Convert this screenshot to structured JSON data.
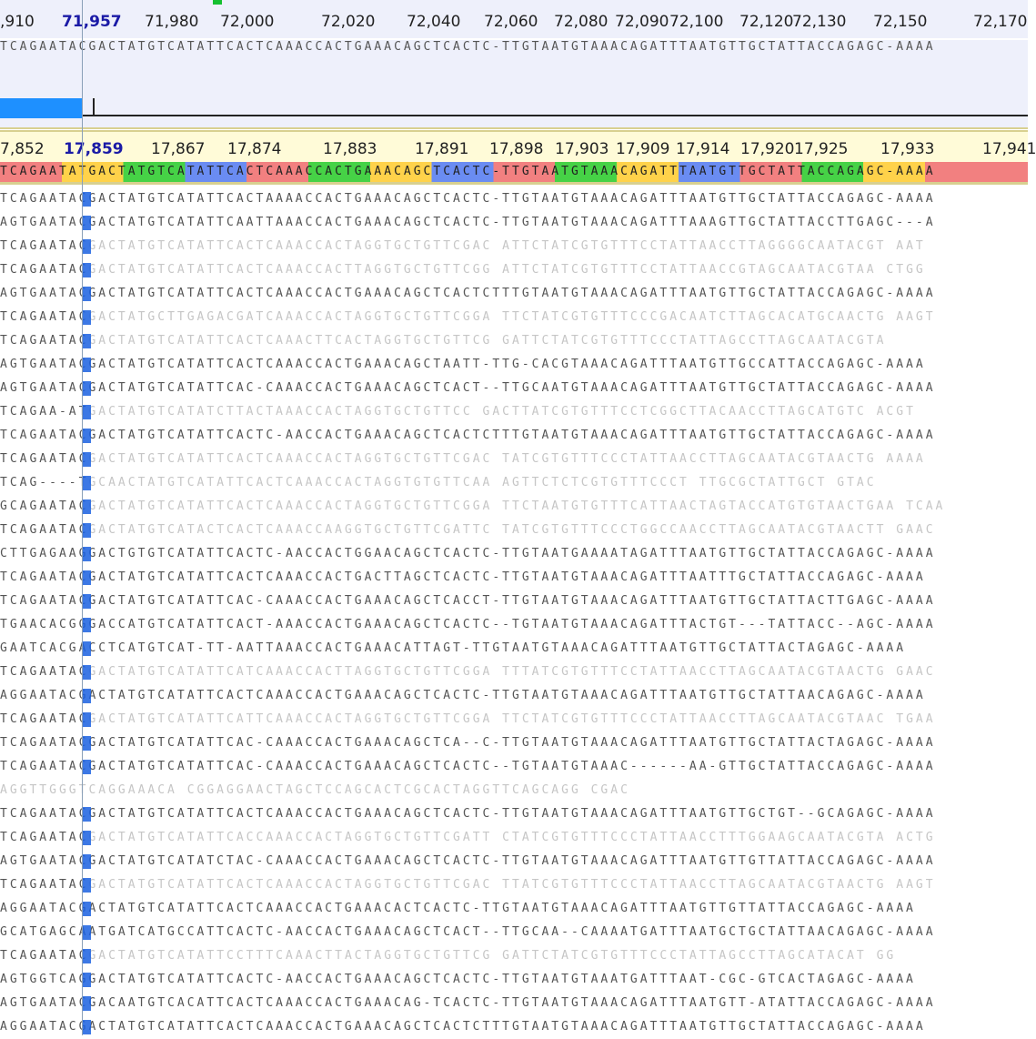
{
  "top_ruler": {
    "current": "71,957",
    "ticks": [
      ",910",
      "71,957",
      "71,980",
      "72,000",
      "72,020",
      "72,040",
      "72,060",
      "72,080",
      "72,090",
      "72,100",
      "72,120",
      "72,130",
      "72,150",
      "72,170"
    ]
  },
  "consensus_top": "TCAGAATACGACTATGTCATATTCACTCAAACCACTGAAACAGCTCACTC-TTGTAATGTAAACAGATTTAATGTTGCTATTACCAGAGC-AAAA",
  "bottom_ruler": {
    "current": "17,859",
    "ticks": [
      "7,852",
      "17,859",
      "17,867",
      "17,874",
      "17,883",
      "17,891",
      "17,898",
      "17,903",
      "17,909",
      "17,914",
      "17,920",
      "17,925",
      "17,933",
      "17,941"
    ]
  },
  "reference": "TCAGAATATGACTATGTCATATTCACTCAAACCACTGAAACAGCTCACTC-TTGTAATGTAAACAGATTTAATGTTGCTATTACCAGAGC-AAAA",
  "reads": [
    {
      "text": "TCAGAATACGACTATGTCATATTCACTAAAACCACTGAAACAGCTCACTC-TTGTAATGTAAACAGATTTAATGTTGCTATTACCAGAGC-AAAA",
      "style": "normal"
    },
    {
      "text": "AGTGAATACGACTATGTCATATTCAATTAAACCACTGAAACAGCTCACTC-TTGTAATGTAAACAGATTTAAAGTTGCTATTACCTTGAGC---A",
      "style": "normal"
    },
    {
      "text": "TCAGAATACGACTATGTCATATTCACTCAAACCACTAGGTGCTGTTCGAC ATTCTATCGTGTTTCCTATTAACCTTAGGGGCAATACGT AAT",
      "style": "faded-tail"
    },
    {
      "text": "TCAGAATACGACTATGTCATATTCACTCAAACCACTTAGGTGCTGTTCGG ATTCTATCGTGTTTCCTATTAACCGTAGCAATACGTAA CTGG",
      "style": "faded-tail"
    },
    {
      "text": "AGTGAATACGACTATGTCATATTCACTCAAACCACTGAAACAGCTCACTCTTTGTAATGTAAACAGATTTAATGTTGCTATTACCAGAGC-AAAA",
      "style": "normal"
    },
    {
      "text": "TCAGAATACGACTATGCTTGAGACGATCAAACCACTAGGTGCTGTTCGGA TTCTATCGTGTTTCCCGACAATCTTAGCACATGCAACTG AAGT",
      "style": "faded-tail"
    },
    {
      "text": "TCAGAATACGACTATGTCATATTCACTCAAACTTCACTAGGTGCTGTTCG GATTCTATCGTGTTTCCCTATTAGCCTTAGCAATACGTA",
      "style": "faded-tail"
    },
    {
      "text": "AGTGAATACGACTATGTCATATTCACTCAAACCACTGAAACAGCTAATT-TTG-CACGTAAACAGATTTAATGTTGCCATTACCAGAGC-AAAA",
      "style": "normal"
    },
    {
      "text": "AGTGAATACGACTATGTCATATTCAC-CAAACCACTGAAACAGCTCACT--TTGCAATGTAAACAGATTTAATGTTGCTATTACCAGAGC-AAAA",
      "style": "normal"
    },
    {
      "text": "TCAGAA-ATGACTATGTCATATCTTACTAAACCACTAGGTGCTGTTCC GACTTATCGTGTTTCCTCGGCTTACAACCTTAGCATGTC ACGT",
      "style": "faded-tail"
    },
    {
      "text": "TCAGAATACGACTATGTCATATTCACTC-AACCACTGAAACAGCTCACTCTTTGTAATGTAAACAGATTTAATGTTGCTATTACCAGAGC-AAAA",
      "style": "normal"
    },
    {
      "text": "TCAGAATACGACTATGTCATATTCACTCAAACCACTAGGTGCTGTTCGAC TATCGTGTTTCCCTATTAACCTTAGCAATACGTAACTG AAAA",
      "style": "faded-tail"
    },
    {
      "text": "TCAG----TGCAACTATGTCATATTCACTCAAACCACTAGGTGTGTTCAA AGTTCTCTCGTGTTTCCCT TTGCGCTATTGCT GTAC",
      "style": "faded-tail"
    },
    {
      "text": "GCAGAATACGACTATGTCATATTCACTCAAACCACTAGGTGCTGTTCGGA TTCTAATGTGTTTCATTAACTAGTACCATGTGTAACTGAA TCAA",
      "style": "faded-tail"
    },
    {
      "text": "TCAGAATACGACTATGTCATACTCACTCAAACCAAGGTGCTGTTCGATTC TATCGTGTTTCCCTGGCCAACCTTAGCAATACGTAACTT GAAC",
      "style": "faded-tail"
    },
    {
      "text": "CTTGAGAAGGACTGTGTCATATTCACTC-AACCACTGGAACAGCTCACTC-TTGTAATGAAAATAGATTTAATGTTGCTATTACCAGAGC-AAAA",
      "style": "normal"
    },
    {
      "text": "TCAGAATACGACTATGTCATATTCACTCAAACCACTGACTTAGCTCACTC-TTGTAATGTAAACAGATTTAATTTGCTATTACCAGAGC-AAAA",
      "style": "normal"
    },
    {
      "text": "TCAGAATACGACTATGTCATATTCAC-CAAACCACTGAAACAGCTCACCT-TTGTAATGTAAACAGATTTAATGTTGCTATTACTTGAGC-AAAA",
      "style": "normal"
    },
    {
      "text": "TGAACACGGGACCATGTCATATTCACT-AAACCACTGAAACAGCTCACTC--TGTAATGTAAACAGATTTACTGT---TATTACC--AGC-AAAA",
      "style": "normal"
    },
    {
      "text": "GAATCACGACCTCATGTCAT-TT-AATTAAACCACTGAAACATTAGT-TTGTAATGTAAACAGATTTAATGTTGCTATTACTAGAGC-AAAA",
      "style": "normal"
    },
    {
      "text": "TCAGAATACGACTATGTCATATTCATCAAACCACTTAGGTGCTGTTCGGA TTTATCGTGTTTCCTATTAACCTTAGCAATACGTAACTG GAAC",
      "style": "faded-tail"
    },
    {
      "text": "AGGAATACGACTATGTCATATTCACTCAAACCACTGAAACAGCTCACTC-TTGTAATGTAAACAGATTTAATGTTGCTATTAACAGAGC-AAAA",
      "style": "normal"
    },
    {
      "text": "TCAGAATACGACTATGTCATATTCATTCAAACCACTAGGTGCTGTTCGGA TTCTATCGTGTTTCCCTATTAACCTTAGCAATACGTAAC TGAA",
      "style": "faded-tail"
    },
    {
      "text": "TCAGAATACGACTATGTCATATTCAC-CAAACCACTGAAACAGCTCA--C-TTGTAATGTAAACAGATTTAATGTTGCTATTACTAGAGC-AAAA",
      "style": "normal"
    },
    {
      "text": "TCAGAATACGACTATGTCATATTCAC-CAAACCACTGAAACAGCTCACTC--TGTAATGTAAAC------AA-GTTGCTATTACCAGAGC-AAAA",
      "style": "normal"
    },
    {
      "text": "AGGTTGGGTCAGGAAACA CGGAGGAACTAGCTCCAGCACTCGCACTAGGTTCAGCAGG CGAC",
      "style": "faded-only"
    },
    {
      "text": "TCAGAATACGACTATGTCATATTCACTCAAACCACTGAAACAGCTCACTC-TTGTAATGTAAACAGATTTAATGTTGCTGT--GCAGAGC-AAAA",
      "style": "normal"
    },
    {
      "text": "TCAGAATACGACTATGTCATATTCACCAAACCACTAGGTGCTGTTCGATT CTATCGTGTTTCCCTATTAACCTTTGGAAGCAATACGTA ACTG",
      "style": "faded-tail"
    },
    {
      "text": "AGTGAATACGACTATGTCATATCTAC-CAAACCACTGAAACAGCTCACTC-TTGTAATGTAAACAGATTTAATGTTGTTATTACCAGAGC-AAAA",
      "style": "normal"
    },
    {
      "text": "TCAGAATACGACTATGTCATATTCACTCAAACCACTAGGTGCTGTTCGAC TTATCGTGTTTCCCTATTAACCTTAGCAATACGTAACTG AAGT",
      "style": "faded-tail"
    },
    {
      "text": "AGGAATACGACTATGTCATATTCACTCAAACCACTGAAACACTCACTC-TTGTAATGTAAACAGATTTAATGTTGTTATTACCAGAGC-AAAA",
      "style": "normal"
    },
    {
      "text": "GCATGAGCAATGATCATGCCATTCACTC-AACCACTGAAACAGCTCACT--TTGCAA--CAAAATGATTTAATGCTGCTATTAACAGAGC-AAAA",
      "style": "normal"
    },
    {
      "text": "TCAGAATACGACTATGTCATATTCCTTTCAAACTTACTAGGTGCTGTTCG GATTCTATCGTGTTTCCCTATTAGCCTTAGCATACAT GG",
      "style": "faded-tail"
    },
    {
      "text": "AGTGGTCAGGACTATGTCATATTCACTC-AACCACTGAAACAGCTCACTC-TTGTAATGTAAATGATTTAAT-CGC-GTCACTAGAGC-AAAA",
      "style": "normal"
    },
    {
      "text": "AGTGAATACGACAATGTCACATTCACTCAAACCACTGAAACAG-TCACTC-TTGTAATGTAAACAGATTTAATGTT-ATATTACCAGAGC-AAAA",
      "style": "normal"
    },
    {
      "text": "AGGAATACGACTATGTCATATTCACTCAAACCACTGAAACAGCTCACTCTTTGTAATGTAAACAGATTTAATGTTGCTATTACCAGAGC-AAAA",
      "style": "normal"
    }
  ]
}
